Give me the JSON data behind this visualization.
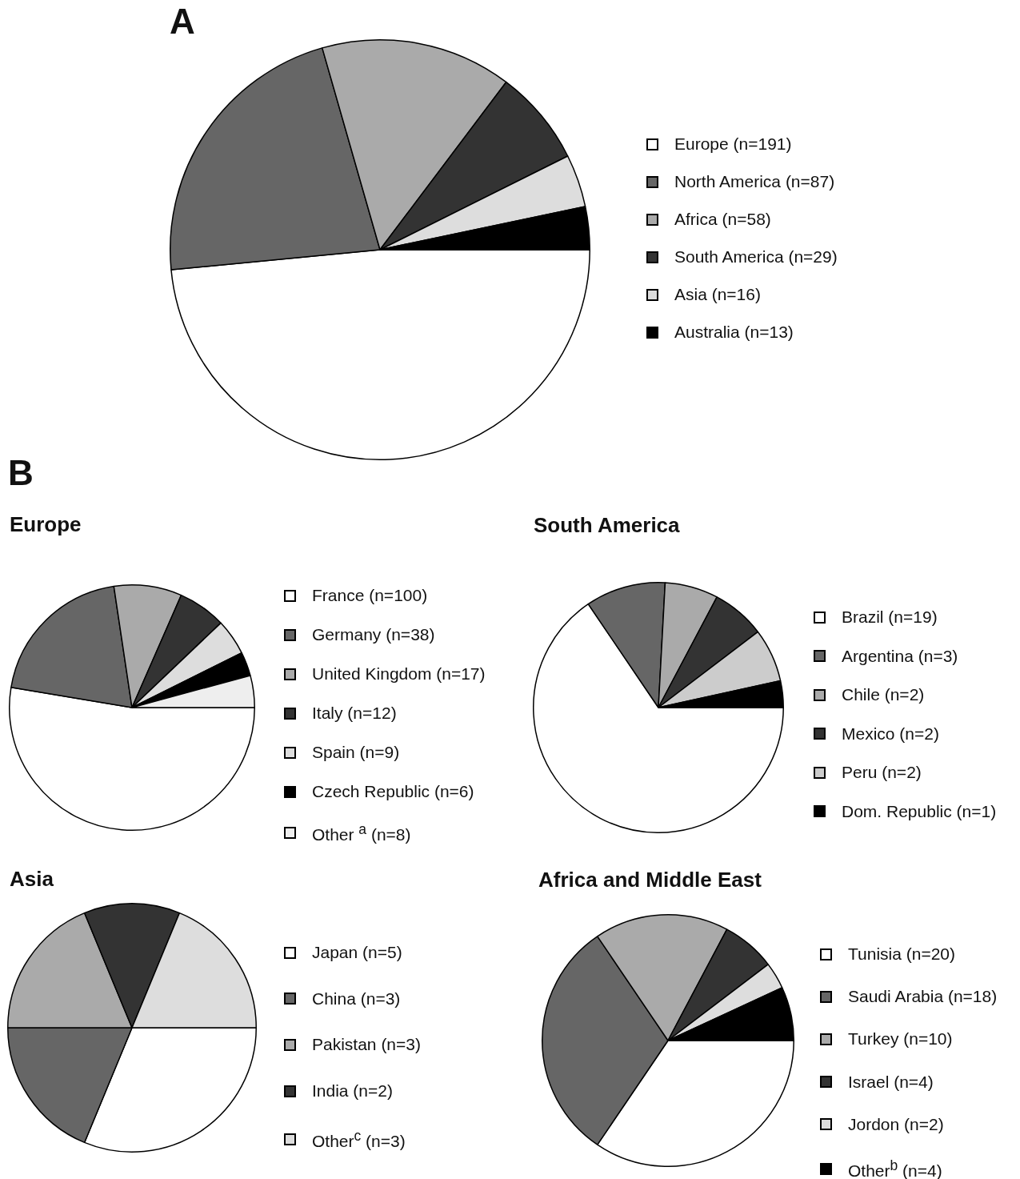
{
  "chart_data": [
    {
      "type": "pie",
      "title": "A",
      "categories": [
        "Europe (n=191)",
        "North America (n=87)",
        "Africa (n=58)",
        "South America (n=29)",
        "Asia (n=16)",
        "Australia (n=13)"
      ],
      "values": [
        191,
        87,
        58,
        29,
        16,
        13
      ],
      "colors": [
        "#ffffff",
        "#666666",
        "#aaaaaa",
        "#333333",
        "#dddddd",
        "#000000"
      ],
      "legend": "right"
    },
    {
      "type": "pie",
      "title": "Europe",
      "annotations": [
        "B"
      ],
      "categories": [
        "France (n=100)",
        "Germany (n=38)",
        "United Kingdom (n=17)",
        "Italy (n=12)",
        "Spain (n=9)",
        "Czech Republic (n=6)",
        "Other $^{a}$ (n=8)"
      ],
      "values": [
        100,
        38,
        17,
        12,
        9,
        6,
        8
      ],
      "colors": [
        "#ffffff",
        "#666666",
        "#aaaaaa",
        "#333333",
        "#dddddd",
        "#000000",
        "#eeeeee"
      ],
      "legend": "right"
    },
    {
      "type": "pie",
      "title": "South America",
      "categories": [
        "Brazil (n=19)",
        "Argentina (n=3)",
        "Chile (n=2)",
        "Mexico (n=2)",
        "Peru (n=2)",
        "Dom. Republic (n=1)"
      ],
      "values": [
        19,
        3,
        2,
        2,
        2,
        1
      ],
      "colors": [
        "#ffffff",
        "#666666",
        "#aaaaaa",
        "#333333",
        "#cccccc",
        "#000000"
      ],
      "legend": "right"
    },
    {
      "type": "pie",
      "title": "Asia",
      "categories": [
        "Japan (n=5)",
        "China (n=3)",
        "Pakistan (n=3)",
        "India (n=2)",
        "Other$^{c}$ (n=3)"
      ],
      "values": [
        5,
        3,
        3,
        2,
        3
      ],
      "colors": [
        "#ffffff",
        "#666666",
        "#aaaaaa",
        "#333333",
        "#dddddd"
      ],
      "legend": "right"
    },
    {
      "type": "pie",
      "title": "Africa and Middle East",
      "categories": [
        "Tunisia (n=20)",
        "Saudi Arabia (n=18)",
        "Turkey (n=10)",
        "Israel (n=4)",
        "Jordon (n=2)",
        "Other$^{b}$ (n=4)"
      ],
      "values": [
        20,
        18,
        10,
        4,
        2,
        4
      ],
      "colors": [
        "#ffffff",
        "#666666",
        "#aaaaaa",
        "#333333",
        "#dddddd",
        "#000000"
      ],
      "legend": "right"
    }
  ]
}
